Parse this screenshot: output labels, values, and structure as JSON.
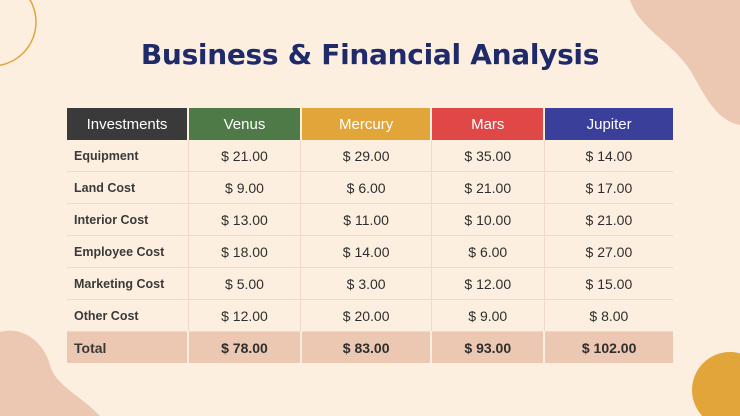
{
  "title": "Business & Financial Analysis",
  "colors": {
    "background": "#fdefe0",
    "title": "#1f2a6b",
    "header_first": "#3a3a3a",
    "total_row": "#ecc8b2",
    "venus": "#4e7a47",
    "mercury": "#e1a53a",
    "mars": "#e04747",
    "jupiter": "#3a3f9a"
  },
  "table": {
    "headers": [
      "Investments",
      "Venus",
      "Mercury",
      "Mars",
      "Jupiter"
    ],
    "rows": [
      {
        "label": "Equipment",
        "values": [
          "$ 21.00",
          "$ 29.00",
          "$ 35.00",
          "$ 14.00"
        ]
      },
      {
        "label": "Land Cost",
        "values": [
          "$ 9.00",
          "$ 6.00",
          "$ 21.00",
          "$ 17.00"
        ]
      },
      {
        "label": "Interior Cost",
        "values": [
          "$ 13.00",
          "$ 11.00",
          "$ 10.00",
          "$ 21.00"
        ]
      },
      {
        "label": "Employee Cost",
        "values": [
          "$ 18.00",
          "$ 14.00",
          "$ 6.00",
          "$ 27.00"
        ]
      },
      {
        "label": "Marketing Cost",
        "values": [
          "$ 5.00",
          "$ 3.00",
          "$ 12.00",
          "$ 15.00"
        ]
      },
      {
        "label": "Other Cost",
        "values": [
          "$ 12.00",
          "$ 20.00",
          "$ 9.00",
          "$ 8.00"
        ]
      }
    ],
    "total": {
      "label": "Total",
      "values": [
        "$ 78.00",
        "$ 83.00",
        "$ 93.00",
        "$ 102.00"
      ]
    }
  }
}
